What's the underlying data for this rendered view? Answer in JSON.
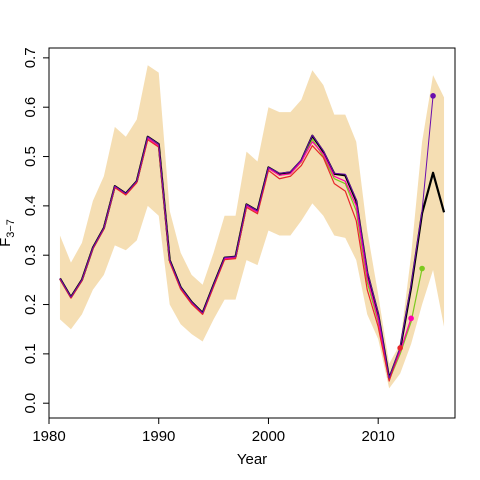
{
  "chart_data": {
    "type": "line",
    "title": "",
    "xlabel": "Year",
    "ylabel": "F",
    "ylabel_subscript": "3−7",
    "xlim": [
      1980,
      2017
    ],
    "ylim": [
      -0.03,
      0.72
    ],
    "x_ticks": [
      1980,
      1990,
      2000,
      2010
    ],
    "y_ticks": [
      0.0,
      0.1,
      0.2,
      0.3,
      0.4,
      0.5,
      0.6,
      0.7
    ],
    "grid": false,
    "legend": "none",
    "band": {
      "color": "#f5deb3",
      "x": [
        1981,
        1982,
        1983,
        1984,
        1985,
        1986,
        1987,
        1988,
        1989,
        1990,
        1991,
        1992,
        1993,
        1994,
        1995,
        1996,
        1997,
        1998,
        1999,
        2000,
        2001,
        2002,
        2003,
        2004,
        2005,
        2006,
        2007,
        2008,
        2009,
        2010,
        2011,
        2012,
        2013,
        2014,
        2015,
        2016
      ],
      "lower": [
        0.17,
        0.15,
        0.18,
        0.23,
        0.26,
        0.32,
        0.31,
        0.33,
        0.4,
        0.38,
        0.2,
        0.16,
        0.14,
        0.125,
        0.17,
        0.21,
        0.21,
        0.29,
        0.28,
        0.35,
        0.34,
        0.34,
        0.37,
        0.405,
        0.38,
        0.34,
        0.335,
        0.29,
        0.18,
        0.13,
        0.03,
        0.06,
        0.12,
        0.2,
        0.27,
        0.155
      ],
      "upper": [
        0.34,
        0.285,
        0.325,
        0.41,
        0.46,
        0.56,
        0.54,
        0.575,
        0.685,
        0.67,
        0.39,
        0.305,
        0.26,
        0.24,
        0.305,
        0.38,
        0.38,
        0.51,
        0.49,
        0.6,
        0.59,
        0.59,
        0.615,
        0.675,
        0.645,
        0.585,
        0.585,
        0.53,
        0.35,
        0.22,
        0.08,
        0.12,
        0.3,
        0.53,
        0.665,
        0.62
      ]
    },
    "series": [
      {
        "color": "#000000",
        "width": 2.2,
        "x": [
          1981,
          1982,
          1983,
          1984,
          1985,
          1986,
          1987,
          1988,
          1989,
          1990,
          1991,
          1992,
          1993,
          1994,
          1995,
          1996,
          1997,
          1998,
          1999,
          2000,
          2001,
          2002,
          2003,
          2004,
          2005,
          2006,
          2007,
          2008,
          2009,
          2010,
          2011,
          2012,
          2013,
          2014,
          2015,
          2016
        ],
        "values": [
          0.253,
          0.215,
          0.25,
          0.315,
          0.355,
          0.44,
          0.425,
          0.45,
          0.54,
          0.525,
          0.29,
          0.235,
          0.205,
          0.183,
          0.24,
          0.295,
          0.297,
          0.403,
          0.39,
          0.478,
          0.465,
          0.468,
          0.492,
          0.542,
          0.51,
          0.465,
          0.462,
          0.41,
          0.265,
          0.18,
          0.05,
          0.11,
          0.235,
          0.385,
          0.467,
          0.387
        ]
      },
      {
        "color": "#7cc91e",
        "width": 1.2,
        "x": [
          1981,
          1982,
          1983,
          1984,
          1985,
          1986,
          1987,
          1988,
          1989,
          1990,
          1991,
          1992,
          1993,
          1994,
          1995,
          1996,
          1997,
          1998,
          1999,
          2000,
          2001,
          2002,
          2003,
          2004,
          2005,
          2006,
          2007,
          2008,
          2009,
          2010,
          2011,
          2012,
          2013,
          2014
        ],
        "values": [
          0.252,
          0.214,
          0.249,
          0.314,
          0.354,
          0.439,
          0.424,
          0.449,
          0.538,
          0.522,
          0.288,
          0.233,
          0.203,
          0.181,
          0.238,
          0.293,
          0.295,
          0.4,
          0.387,
          0.476,
          0.462,
          0.465,
          0.489,
          0.535,
          0.5,
          0.455,
          0.445,
          0.39,
          0.245,
          0.165,
          0.047,
          0.1,
          0.165,
          0.273
        ],
        "end_marker": true
      },
      {
        "color": "#ff00b0",
        "width": 1.2,
        "x": [
          1981,
          1982,
          1983,
          1984,
          1985,
          1986,
          1987,
          1988,
          1989,
          1990,
          1991,
          1992,
          1993,
          1994,
          1995,
          1996,
          1997,
          1998,
          1999,
          2000,
          2001,
          2002,
          2003,
          2004,
          2005,
          2006,
          2007,
          2008,
          2009,
          2010,
          2011,
          2012,
          2013
        ],
        "values": [
          0.252,
          0.214,
          0.249,
          0.314,
          0.354,
          0.439,
          0.424,
          0.449,
          0.537,
          0.521,
          0.288,
          0.233,
          0.203,
          0.181,
          0.238,
          0.293,
          0.295,
          0.4,
          0.387,
          0.476,
          0.462,
          0.465,
          0.49,
          0.53,
          0.505,
          0.46,
          0.45,
          0.4,
          0.255,
          0.17,
          0.048,
          0.105,
          0.172
        ],
        "end_marker": true
      },
      {
        "color": "#e8262a",
        "width": 1.2,
        "x": [
          1981,
          1982,
          1983,
          1984,
          1985,
          1986,
          1987,
          1988,
          1989,
          1990,
          1991,
          1992,
          1993,
          1994,
          1995,
          1996,
          1997,
          1998,
          1999,
          2000,
          2001,
          2002,
          2003,
          2004,
          2005,
          2006,
          2007,
          2008,
          2009,
          2010,
          2011,
          2012
        ],
        "values": [
          0.251,
          0.213,
          0.248,
          0.313,
          0.353,
          0.437,
          0.422,
          0.447,
          0.534,
          0.519,
          0.286,
          0.231,
          0.201,
          0.18,
          0.236,
          0.291,
          0.293,
          0.397,
          0.384,
          0.472,
          0.455,
          0.46,
          0.482,
          0.522,
          0.498,
          0.445,
          0.43,
          0.37,
          0.23,
          0.155,
          0.045,
          0.112
        ],
        "end_marker": true
      },
      {
        "color": "#6a0dad",
        "width": 1.0,
        "x": [
          1981,
          1982,
          1983,
          1984,
          1985,
          1986,
          1987,
          1988,
          1989,
          1990,
          1991,
          1992,
          1993,
          1994,
          1995,
          1996,
          1997,
          1998,
          1999,
          2000,
          2001,
          2002,
          2003,
          2004,
          2005,
          2006,
          2007,
          2008,
          2009,
          2010,
          2011,
          2012,
          2013,
          2014,
          2015
        ],
        "values": [
          0.253,
          0.215,
          0.25,
          0.315,
          0.355,
          0.44,
          0.425,
          0.45,
          0.54,
          0.525,
          0.29,
          0.235,
          0.205,
          0.183,
          0.24,
          0.295,
          0.297,
          0.403,
          0.39,
          0.478,
          0.466,
          0.469,
          0.493,
          0.543,
          0.512,
          0.466,
          0.464,
          0.413,
          0.268,
          0.182,
          0.051,
          0.113,
          0.24,
          0.39,
          0.623
        ],
        "end_marker": true
      }
    ]
  }
}
